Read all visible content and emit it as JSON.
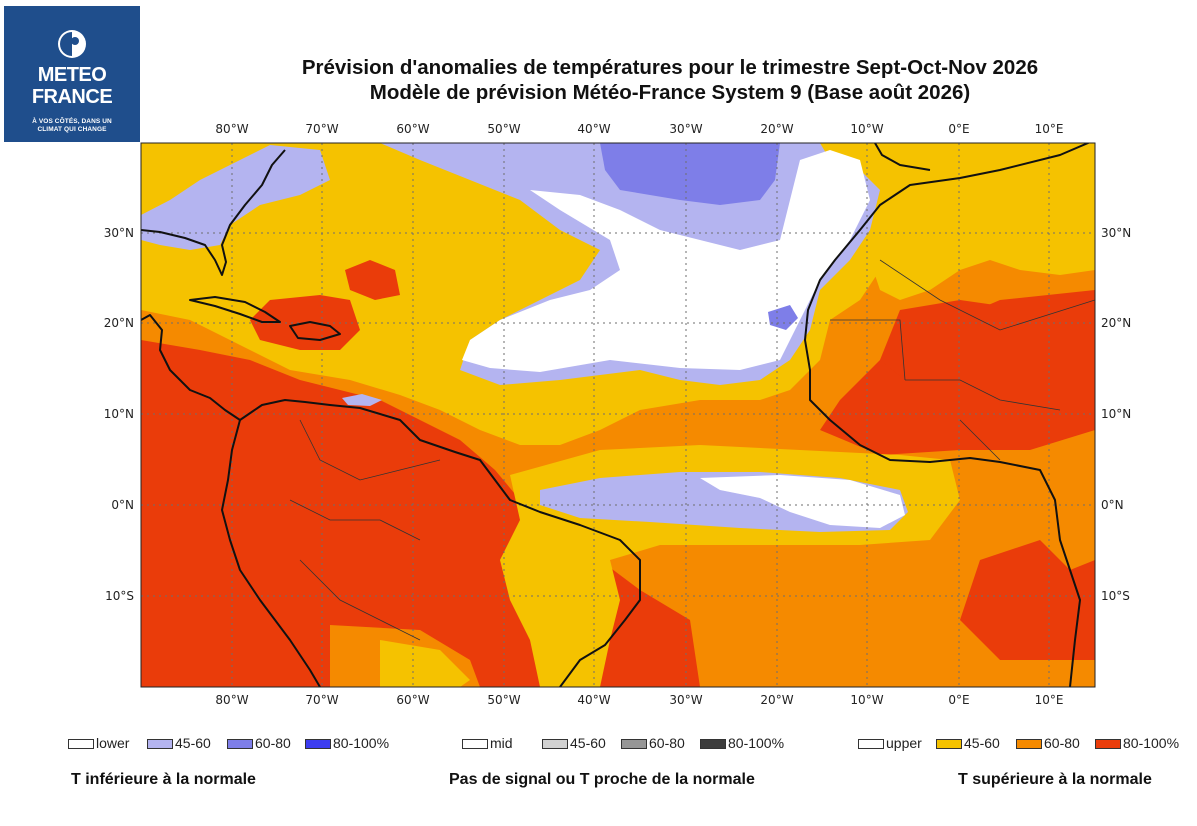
{
  "logo": {
    "brand_line1": "METEO",
    "brand_line2": "FRANCE",
    "tagline_line1": "À VOS CÔTÉS, DANS UN",
    "tagline_line2": "CLIMAT QUI CHANGE"
  },
  "title": {
    "line1": "Prévision d'anomalies de températures pour le trimestre Sept-Oct-Nov 2026",
    "line2": "Modèle de prévision Météo-France System 9 (Base août 2026)"
  },
  "map": {
    "lon_labels": [
      "80°W",
      "70°W",
      "60°W",
      "50°W",
      "40°W",
      "30°W",
      "20°W",
      "10°W",
      "0°E",
      "10°E"
    ],
    "lat_labels": [
      "30°N",
      "20°N",
      "10°N",
      "0°N",
      "10°S"
    ],
    "category_colors": {
      "lower_white": "#ffffff",
      "lower_45_60": "#b4b4f0",
      "lower_60_80": "#7e7ee8",
      "lower_80_100": "#3c3cf0",
      "mid_white": "#ffffff",
      "mid_45_60": "#d2d2d2",
      "mid_60_80": "#969696",
      "mid_80_100": "#3c3c3c",
      "upper_white": "#ffffff",
      "upper_45_60": "#f5c200",
      "upper_60_80": "#f58a00",
      "upper_80_100": "#ea3c0a"
    }
  },
  "legend": {
    "groups": [
      {
        "caption": "T inférieure à la normale",
        "items": [
          {
            "label": "lower",
            "color": "#ffffff"
          },
          {
            "label": "45-60",
            "color": "#b4b4f0"
          },
          {
            "label": "60-80",
            "color": "#7e7ee8"
          },
          {
            "label": "80-100%",
            "color": "#3c3cf0"
          }
        ]
      },
      {
        "caption": "Pas de signal ou T proche de la normale",
        "items": [
          {
            "label": "mid",
            "color": "#ffffff"
          },
          {
            "label": "45-60",
            "color": "#d2d2d2"
          },
          {
            "label": "60-80",
            "color": "#969696"
          },
          {
            "label": "80-100%",
            "color": "#3c3c3c"
          }
        ]
      },
      {
        "caption": "T supérieure à la normale",
        "items": [
          {
            "label": "upper",
            "color": "#ffffff"
          },
          {
            "label": "45-60",
            "color": "#f5c200"
          },
          {
            "label": "60-80",
            "color": "#f58a00"
          },
          {
            "label": "80-100%",
            "color": "#ea3c0a"
          }
        ]
      }
    ]
  }
}
